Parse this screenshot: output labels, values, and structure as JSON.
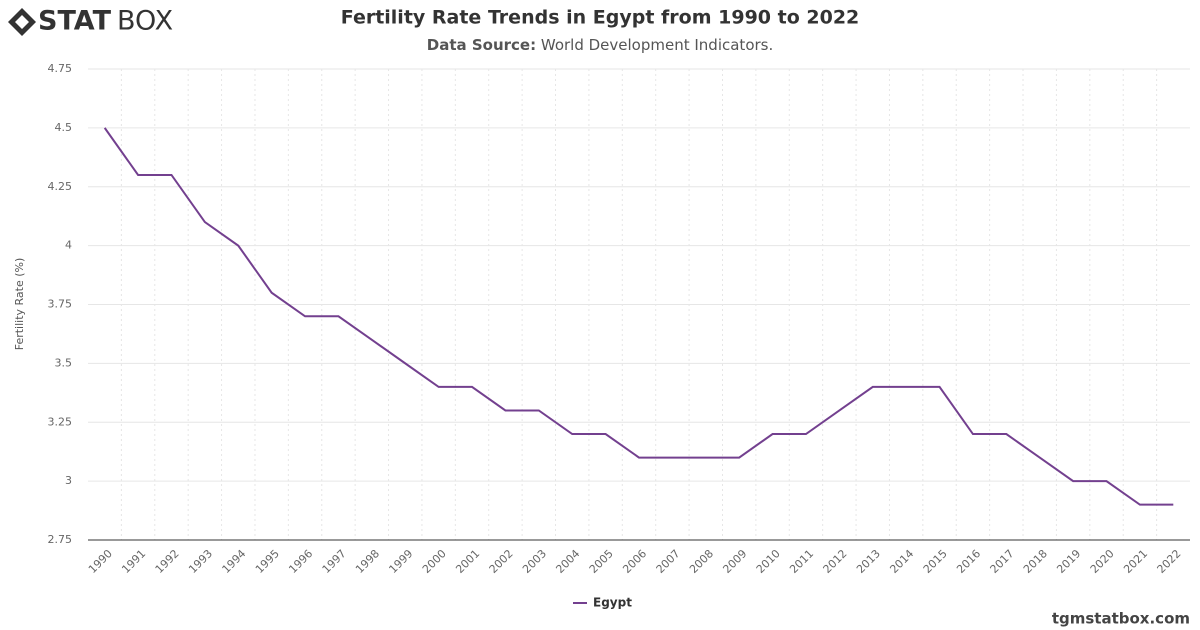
{
  "logo_bold": "STAT",
  "logo_light": "BOX",
  "footer": "tgmstatbox.com",
  "chart_data": {
    "type": "line",
    "title": "Fertility Rate Trends in Egypt from 1990 to 2022",
    "source_label": "Data Source:",
    "source": "World Development Indicators.",
    "y_label": "Fertility Rate (%)",
    "categories": [
      "1990",
      "1991",
      "1992",
      "1993",
      "1994",
      "1995",
      "1996",
      "1997",
      "1998",
      "1999",
      "2000",
      "2001",
      "2002",
      "2003",
      "2004",
      "2005",
      "2006",
      "2007",
      "2008",
      "2009",
      "2010",
      "2011",
      "2012",
      "2013",
      "2014",
      "2015",
      "2016",
      "2017",
      "2018",
      "2019",
      "2020",
      "2021",
      "2022"
    ],
    "series": [
      {
        "name": "Egypt",
        "color": "#73408f",
        "values": [
          4.5,
          4.3,
          4.3,
          4.1,
          4.0,
          3.8,
          3.7,
          3.7,
          3.6,
          3.5,
          3.4,
          3.4,
          3.3,
          3.3,
          3.2,
          3.2,
          3.1,
          3.1,
          3.1,
          3.1,
          3.2,
          3.2,
          3.3,
          3.4,
          3.4,
          3.4,
          3.2,
          3.2,
          3.1,
          3.0,
          3.0,
          2.9,
          2.9
        ]
      }
    ],
    "ylim": [
      2.75,
      4.75
    ],
    "yticks": [
      2.75,
      3,
      3.25,
      3.5,
      3.75,
      4,
      4.25,
      4.5,
      4.75
    ],
    "grid": true,
    "legend": "bottom"
  }
}
